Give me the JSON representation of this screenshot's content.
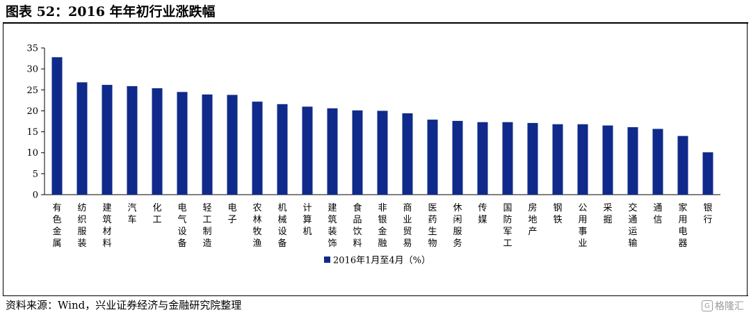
{
  "figure": {
    "title": "图表 52：2016 年年初行业涨跌幅",
    "source": "资料来源：Wind，兴业证券经济与金融研究院整理",
    "watermark": "格隆汇",
    "watermark_logo": "G"
  },
  "chart_data": {
    "type": "bar",
    "categories": [
      "有色金属",
      "纺织服装",
      "建筑材料",
      "汽车",
      "化工",
      "电气设备",
      "轻工制造",
      "电子",
      "农林牧渔",
      "机械设备",
      "计算机",
      "建筑装饰",
      "食品饮料",
      "非银金融",
      "商业贸易",
      "医药生物",
      "休闲服务",
      "传媒",
      "国防军工",
      "房地产",
      "钢铁",
      "公用事业",
      "采掘",
      "交通运输",
      "通信",
      "家用电器",
      "银行"
    ],
    "series": [
      {
        "name": "2016年1月至4月（%）",
        "color": "#0f2a8a",
        "values": [
          32.8,
          26.8,
          26.2,
          25.9,
          25.4,
          24.5,
          23.9,
          23.8,
          22.2,
          21.6,
          21.0,
          20.6,
          20.1,
          20.0,
          19.4,
          17.9,
          17.6,
          17.3,
          17.3,
          17.1,
          16.8,
          16.8,
          16.5,
          16.1,
          15.7,
          14.0,
          10.1
        ]
      }
    ],
    "ylim": [
      0,
      35
    ],
    "yticks": [
      0,
      5,
      10,
      15,
      20,
      25,
      30,
      35
    ],
    "xlabel": "",
    "ylabel": "",
    "grid": false,
    "legend_position": "bottom"
  }
}
